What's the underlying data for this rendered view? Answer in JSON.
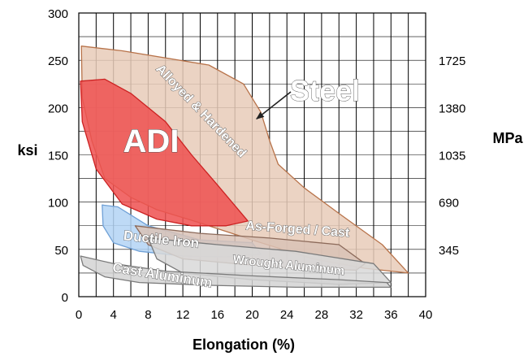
{
  "chart_data": {
    "type": "area",
    "title": "",
    "xlabel": "Elongation (%)",
    "ylabel": "ksi",
    "y2label": "MPa",
    "xlim": [
      0,
      40
    ],
    "ylim": [
      0,
      300
    ],
    "x_ticks": [
      0,
      4,
      8,
      12,
      16,
      20,
      24,
      28,
      32,
      36,
      40
    ],
    "y_ticks": [
      0,
      50,
      100,
      150,
      200,
      250,
      300
    ],
    "y2_ticks": [
      {
        "label": "345",
        "ksi": 50
      },
      {
        "label": "690",
        "ksi": 100
      },
      {
        "label": "1035",
        "ksi": 150
      },
      {
        "label": "1380",
        "ksi": 200
      },
      {
        "label": "1725",
        "ksi": 250
      }
    ],
    "grid": true,
    "regions": [
      {
        "id": "steel",
        "label": "Alloyed & Hardened",
        "fill": "#e8cbb8",
        "stroke": "#b8734a",
        "points": [
          [
            0.3,
            265
          ],
          [
            5,
            260
          ],
          [
            15,
            245
          ],
          [
            19,
            225
          ],
          [
            21,
            195
          ],
          [
            22,
            165
          ],
          [
            23,
            140
          ],
          [
            26,
            115
          ],
          [
            30,
            88
          ],
          [
            35,
            55
          ],
          [
            38,
            25
          ],
          [
            33,
            30
          ],
          [
            27,
            40
          ],
          [
            20,
            60
          ],
          [
            14,
            78
          ],
          [
            9,
            92
          ],
          [
            6,
            105
          ],
          [
            3,
            125
          ],
          [
            1.5,
            165
          ],
          [
            0.4,
            210
          ]
        ]
      },
      {
        "id": "adi",
        "label": "ADI",
        "fill": "#ee5050",
        "stroke": "#cc2222",
        "points": [
          [
            0.2,
            228
          ],
          [
            3,
            230
          ],
          [
            6,
            215
          ],
          [
            10,
            185
          ],
          [
            13,
            150
          ],
          [
            16,
            118
          ],
          [
            19.5,
            80
          ],
          [
            17,
            75
          ],
          [
            13,
            75
          ],
          [
            9,
            82
          ],
          [
            5,
            98
          ],
          [
            2,
            135
          ],
          [
            0.4,
            185
          ]
        ]
      },
      {
        "id": "ductile-iron",
        "label": "Ductile Iron",
        "fill": "#b3d4f4",
        "stroke": "#6fa0d6",
        "points": [
          [
            2.7,
            97
          ],
          [
            4.5,
            95
          ],
          [
            8,
            75
          ],
          [
            14,
            60
          ],
          [
            20,
            57
          ],
          [
            21,
            45
          ],
          [
            17,
            42
          ],
          [
            12,
            43
          ],
          [
            7,
            48
          ],
          [
            4,
            57
          ],
          [
            2.8,
            75
          ]
        ]
      },
      {
        "id": "as-forged",
        "label": "As-Forged / Cast",
        "fill": "#d9c2b6",
        "stroke": "#8c6a5a",
        "points": [
          [
            6.5,
            75
          ],
          [
            14,
            67
          ],
          [
            22,
            62
          ],
          [
            30,
            55
          ],
          [
            33,
            35
          ],
          [
            32,
            28
          ],
          [
            25,
            30
          ],
          [
            18,
            35
          ],
          [
            12,
            40
          ],
          [
            8,
            55
          ]
        ]
      },
      {
        "id": "wrought-aluminum",
        "label": "Wrought Aluminum",
        "fill": "#d8d8d8",
        "stroke": "#7a7a7a",
        "points": [
          [
            8,
            62
          ],
          [
            16,
            55
          ],
          [
            25,
            48
          ],
          [
            34,
            35
          ],
          [
            36,
            15
          ],
          [
            30,
            13
          ],
          [
            20,
            18
          ],
          [
            12,
            25
          ],
          [
            9,
            40
          ]
        ]
      },
      {
        "id": "cast-aluminum",
        "label": "Cast Aluminum",
        "fill": "#d4d4d4",
        "stroke": "#7a7a7a",
        "points": [
          [
            0.2,
            43
          ],
          [
            4,
            35
          ],
          [
            10,
            27
          ],
          [
            20,
            22
          ],
          [
            30,
            18
          ],
          [
            35.5,
            15
          ],
          [
            36,
            10
          ],
          [
            25,
            10
          ],
          [
            15,
            12
          ],
          [
            7,
            15
          ],
          [
            3,
            21
          ],
          [
            0.5,
            33
          ]
        ]
      }
    ],
    "annotations": [
      {
        "id": "steel",
        "text": "Steel",
        "arrow_to": [
          20.5,
          188
        ]
      }
    ]
  }
}
